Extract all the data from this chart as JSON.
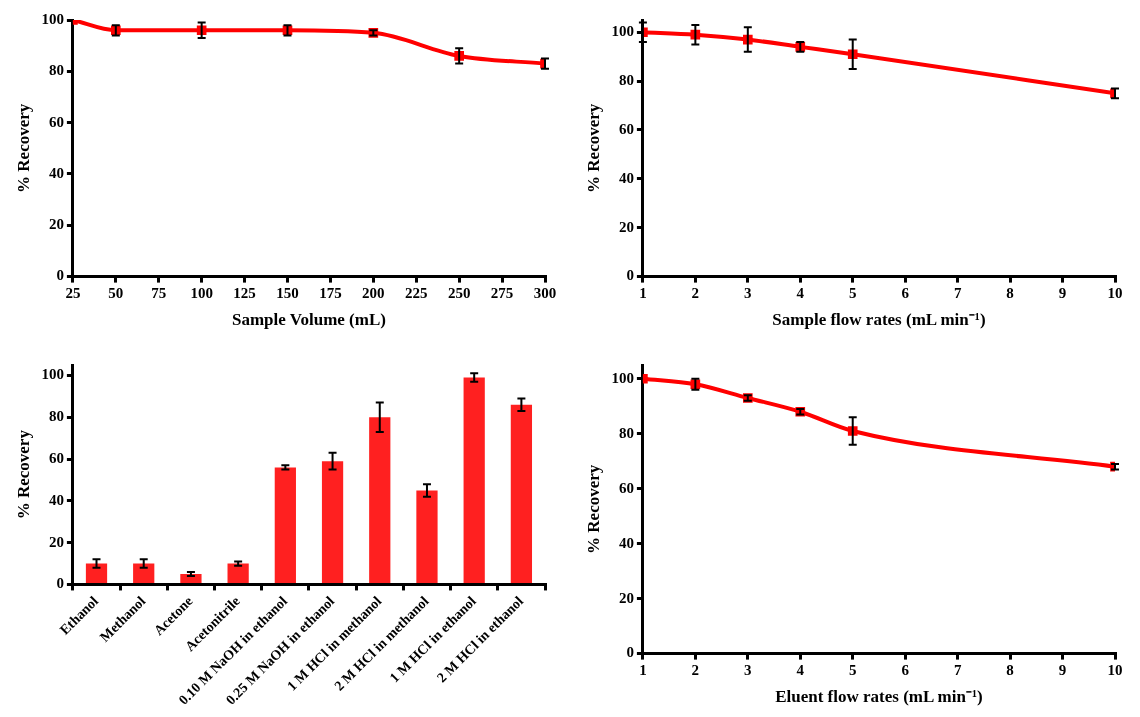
{
  "chart_data": [
    {
      "type": "line",
      "xlabel": "Sample Volume (mL)",
      "ylabel": "% Recovery",
      "x": [
        25,
        50,
        100,
        150,
        200,
        250,
        300
      ],
      "series": [
        {
          "color": "#ff0000",
          "values": [
            100,
            96,
            96,
            96,
            95,
            86,
            83
          ],
          "errors": [
            null,
            2,
            3,
            2,
            1,
            3,
            2
          ]
        }
      ],
      "xlim": [
        25,
        300
      ],
      "xticks": [
        25,
        50,
        75,
        100,
        125,
        150,
        175,
        200,
        225,
        250,
        275,
        300
      ],
      "ylim": [
        0,
        100
      ],
      "yticks": [
        0,
        20,
        40,
        60,
        80,
        100
      ],
      "marker": "square",
      "grid": false,
      "legend": false
    },
    {
      "type": "line",
      "xlabel": "Sample flow rates (mL min⁻¹)",
      "ylabel": "% Recovery",
      "x": [
        1,
        2,
        3,
        4,
        5,
        10
      ],
      "series": [
        {
          "color": "#ff0000",
          "values": [
            100,
            99,
            97,
            94,
            91,
            75
          ],
          "errors": [
            4,
            4,
            5,
            2,
            6,
            2
          ]
        }
      ],
      "xlim": [
        1,
        10
      ],
      "xticks": [
        1,
        2,
        3,
        4,
        5,
        6,
        7,
        8,
        9,
        10
      ],
      "ylim": [
        0,
        105
      ],
      "yticks": [
        0,
        20,
        40,
        60,
        80,
        100
      ],
      "marker": "square",
      "grid": false,
      "legend": false
    },
    {
      "type": "bar",
      "ylabel": "% Recovery",
      "categories": [
        "Ethanol",
        "Methanol",
        "Acetone",
        "Acetonitrile",
        "0.10 M NaOH in ethanol",
        "0.25 M NaOH in ethanol",
        "1 M HCl in methanol",
        "2 M HCl in methanol",
        "1 M HCl in ethanol",
        "2 M HCl in ethanol"
      ],
      "series": [
        {
          "color": "#ff2020",
          "values": [
            10,
            10,
            5,
            10,
            56,
            59,
            80,
            45,
            99,
            86
          ],
          "errors": [
            2,
            2,
            1,
            1,
            1,
            4,
            7,
            3,
            2,
            3
          ]
        }
      ],
      "ylim": [
        0,
        105
      ],
      "yticks": [
        0,
        20,
        40,
        60,
        80,
        100
      ],
      "grid": false,
      "legend": false
    },
    {
      "type": "line",
      "xlabel": "Eluent flow rates (mL min⁻¹)",
      "ylabel": "% Recovery",
      "x": [
        1,
        2,
        3,
        4,
        5,
        10
      ],
      "series": [
        {
          "color": "#ff0000",
          "values": [
            100,
            98,
            93,
            88,
            81,
            68
          ],
          "errors": [
            null,
            2,
            1,
            1,
            5,
            1
          ]
        }
      ],
      "xlim": [
        1,
        10
      ],
      "xticks": [
        1,
        2,
        3,
        4,
        5,
        6,
        7,
        8,
        9,
        10
      ],
      "ylim": [
        0,
        105
      ],
      "yticks": [
        0,
        20,
        40,
        60,
        80,
        100
      ],
      "marker": "square",
      "grid": false,
      "legend": false
    }
  ]
}
